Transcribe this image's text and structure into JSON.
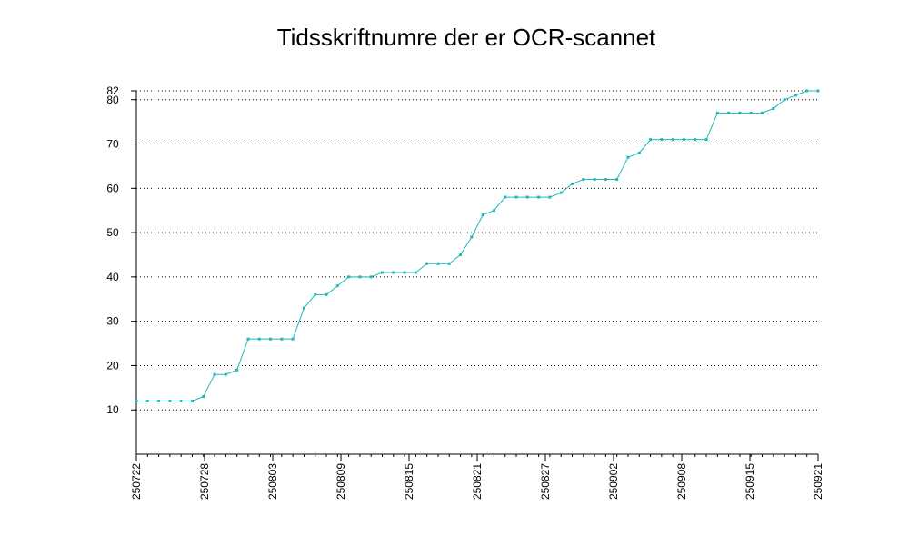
{
  "chart_data": {
    "type": "line",
    "title": "Tidsskriftnumre der er OCR-scannet",
    "xlabel": "",
    "ylabel": "",
    "x_tick_labels": [
      "250722",
      "250728",
      "250803",
      "250809",
      "250815",
      "250821",
      "250827",
      "250902",
      "250908",
      "250915",
      "250921"
    ],
    "y_ticks": [
      10,
      20,
      30,
      40,
      50,
      60,
      70,
      80,
      82
    ],
    "ylim": [
      0,
      82
    ],
    "grid": "horizontal-dotted",
    "series": [
      {
        "name": "",
        "color": "#22b8b8",
        "values": [
          12,
          12,
          12,
          12,
          12,
          12,
          13,
          18,
          18,
          19,
          26,
          26,
          26,
          26,
          26,
          33,
          36,
          36,
          38,
          40,
          40,
          40,
          41,
          41,
          41,
          41,
          43,
          43,
          43,
          45,
          49,
          54,
          55,
          58,
          58,
          58,
          58,
          58,
          59,
          61,
          62,
          62,
          62,
          62,
          67,
          68,
          71,
          71,
          71,
          71,
          71,
          71,
          77,
          77,
          77,
          77,
          77,
          78,
          80,
          81,
          82,
          82
        ]
      }
    ]
  }
}
